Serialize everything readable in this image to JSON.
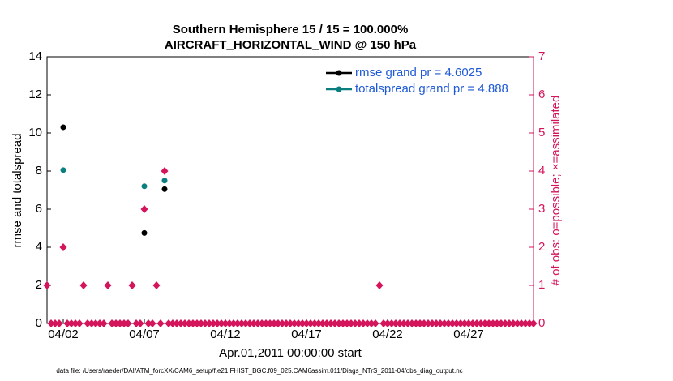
{
  "chart_data": {
    "type": "scatter",
    "title": "Southern Hemisphere 15 / 15 = 100.000%",
    "subtitle": "AIRCRAFT_HORIZONTAL_WIND @ 150 hPa",
    "xlabel": "Apr.01,2011 00:00:00 start",
    "ylabel": "rmse and totalspread",
    "y2label": "# of obs: o=possible; ×=assimilated",
    "footnote": "data file: /Users/raeder/DAI/ATM_forcXX/CAM6_setup/f.e21.FHIST_BGC.f09_025.CAM6assim.011/Diags_NTrS_2011-04/obs_diag_output.nc",
    "xlim": [
      0,
      30
    ],
    "xticks": [
      {
        "value": 1,
        "label": "04/02"
      },
      {
        "value": 6,
        "label": "04/07"
      },
      {
        "value": 11,
        "label": "04/12"
      },
      {
        "value": 16,
        "label": "04/17"
      },
      {
        "value": 21,
        "label": "04/22"
      },
      {
        "value": 26,
        "label": "04/27"
      }
    ],
    "ylim": [
      0,
      14
    ],
    "yticks": [
      0,
      2,
      4,
      6,
      8,
      10,
      12,
      14
    ],
    "y2lim": [
      0,
      7
    ],
    "y2ticks": [
      0,
      1,
      2,
      3,
      4,
      5,
      6,
      7
    ],
    "legend": "upper right",
    "series": [
      {
        "name": "rmse grand pr = 4.6025",
        "color": "#000000",
        "x": [
          1,
          6,
          7.25
        ],
        "values": [
          10.3,
          4.75,
          7.05
        ]
      },
      {
        "name": "totalspread grand pr = 4.888",
        "color": "#0b7f80",
        "x": [
          1,
          6,
          7.25
        ],
        "values": [
          8.05,
          7.2,
          7.5
        ]
      },
      {
        "color": "#d4155c",
        "axis": "y2",
        "x": [
          0,
          0.25,
          0.5,
          0.75,
          1,
          1.25,
          1.5,
          1.75,
          2,
          2.25,
          2.5,
          2.75,
          3,
          3.25,
          3.5,
          3.75,
          4,
          4.25,
          4.5,
          4.75,
          5,
          5.25,
          5.5,
          5.75,
          6,
          6.25,
          6.5,
          6.75,
          7,
          7.25,
          7.5,
          7.75,
          8,
          8.25,
          8.5,
          8.75,
          9,
          9.25,
          9.5,
          9.75,
          10,
          10.25,
          10.5,
          10.75,
          11,
          11.25,
          11.5,
          11.75,
          12,
          12.25,
          12.5,
          12.75,
          13,
          13.25,
          13.5,
          13.75,
          14,
          14.25,
          14.5,
          14.75,
          15,
          15.25,
          15.5,
          15.75,
          16,
          16.25,
          16.5,
          16.75,
          17,
          17.25,
          17.5,
          17.75,
          18,
          18.25,
          18.5,
          18.75,
          19,
          19.25,
          19.5,
          19.75,
          20,
          20.25,
          20.5,
          20.75,
          21,
          21.25,
          21.5,
          21.75,
          22,
          22.25,
          22.5,
          22.75,
          23,
          23.25,
          23.5,
          23.75,
          24,
          24.25,
          24.5,
          24.75,
          25,
          25.25,
          25.5,
          25.75,
          26,
          26.25,
          26.5,
          26.75,
          27,
          27.25,
          27.5,
          27.75,
          28,
          28.25,
          28.5,
          28.75,
          29,
          29.25,
          29.5,
          29.75,
          30
        ],
        "values": [
          1,
          0,
          0,
          0,
          2,
          0,
          0,
          0,
          0,
          1,
          0,
          0,
          0,
          0,
          0,
          1,
          0,
          0,
          0,
          0,
          0,
          1,
          0,
          0,
          3,
          0,
          0,
          1,
          0,
          4,
          0,
          0,
          0,
          0,
          0,
          0,
          0,
          0,
          0,
          0,
          0,
          0,
          0,
          0,
          0,
          0,
          0,
          0,
          0,
          0,
          0,
          0,
          0,
          0,
          0,
          0,
          0,
          0,
          0,
          0,
          0,
          0,
          0,
          0,
          0,
          0,
          0,
          0,
          0,
          0,
          0,
          0,
          0,
          0,
          0,
          0,
          0,
          0,
          0,
          0,
          0,
          0,
          1,
          0,
          0,
          0,
          0,
          0,
          0,
          0,
          0,
          0,
          0,
          0,
          0,
          0,
          0,
          0,
          0,
          0,
          0,
          0,
          0,
          0,
          0,
          0,
          0,
          0,
          0,
          0,
          0,
          0,
          0,
          0,
          0,
          0,
          0,
          0,
          0,
          0,
          0
        ]
      }
    ]
  }
}
